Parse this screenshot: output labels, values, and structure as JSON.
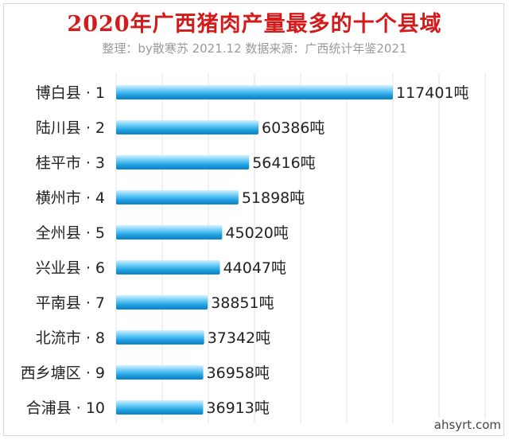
{
  "header": {
    "title": "2020年广西猪肉产量最多的十个县域",
    "subtitle": "整理：by散寒苏  2021.12  数据来源：广西统计年鉴2021"
  },
  "watermark": "ahsyrt.com",
  "chart_data": {
    "type": "bar",
    "orientation": "horizontal",
    "categories": [
      "博白县 · 1",
      "陆川县 · 2",
      "桂平市 · 3",
      "横州市 · 4",
      "全州县 · 5",
      "兴业县 · 6",
      "平南县 · 7",
      "北流市 · 8",
      "西乡塘区 · 9",
      "合浦县 · 10"
    ],
    "values": [
      117401,
      60386,
      56416,
      51898,
      45020,
      44047,
      38851,
      37342,
      36958,
      36913
    ],
    "value_labels": [
      "117401吨",
      "60386吨",
      "56416吨",
      "51898吨",
      "45020吨",
      "44047吨",
      "38851吨",
      "37342吨",
      "36958吨",
      "36913吨"
    ],
    "unit": "吨",
    "xlim": [
      0,
      117401
    ],
    "grid": true,
    "colors": {
      "bar_light": "#bfe9ff",
      "bar_mid": "#35b4ee",
      "bar_dark": "#0b7fc4",
      "grid": "#e3e3e3",
      "title": "#d41b1b",
      "subtitle": "#9a9a9a"
    }
  }
}
